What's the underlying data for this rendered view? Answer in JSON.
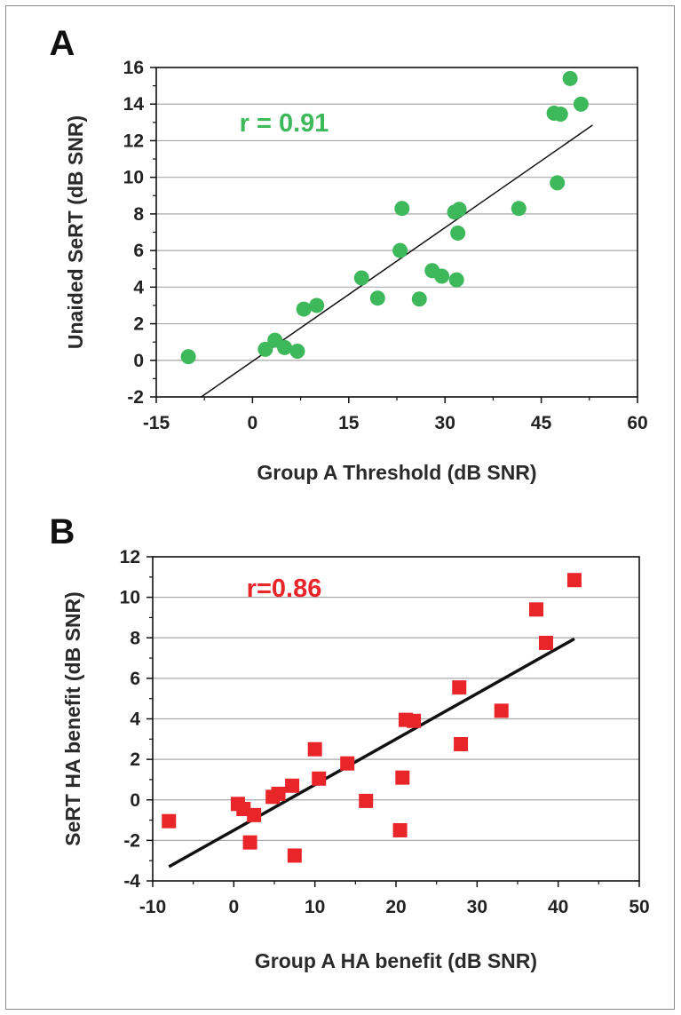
{
  "chart_data": [
    {
      "panel": "A",
      "type": "scatter",
      "xlabel": "Group A Threshold (dB SNR)",
      "ylabel": "Unaided SeRT (dB SNR)",
      "xlim": [
        -15,
        60
      ],
      "ylim": [
        -2,
        16
      ],
      "xticks": [
        "-15",
        "0",
        "15",
        "30",
        "45",
        "60"
      ],
      "yticks": [
        "-2",
        "0",
        "2",
        "4",
        "6",
        "8",
        "10",
        "12",
        "14",
        "16"
      ],
      "grid": "horizontal",
      "marker": "circle",
      "color": "#3db85a",
      "annotation": "r = 0.91",
      "points": [
        {
          "x": -10,
          "y": 0.2
        },
        {
          "x": 2,
          "y": 0.6
        },
        {
          "x": 3.5,
          "y": 1.1
        },
        {
          "x": 5,
          "y": 0.7
        },
        {
          "x": 7,
          "y": 0.5
        },
        {
          "x": 8,
          "y": 2.8
        },
        {
          "x": 10,
          "y": 3.0
        },
        {
          "x": 17,
          "y": 4.5
        },
        {
          "x": 19.5,
          "y": 3.4
        },
        {
          "x": 23,
          "y": 6.0
        },
        {
          "x": 23.3,
          "y": 8.3
        },
        {
          "x": 26,
          "y": 3.35
        },
        {
          "x": 28,
          "y": 4.9
        },
        {
          "x": 29.5,
          "y": 4.6
        },
        {
          "x": 31.5,
          "y": 8.1
        },
        {
          "x": 31.8,
          "y": 4.4
        },
        {
          "x": 32,
          "y": 6.95
        },
        {
          "x": 32.2,
          "y": 8.25
        },
        {
          "x": 41.5,
          "y": 8.3
        },
        {
          "x": 47,
          "y": 13.5
        },
        {
          "x": 47.5,
          "y": 9.7
        },
        {
          "x": 48,
          "y": 13.45
        },
        {
          "x": 49.5,
          "y": 15.4
        },
        {
          "x": 51.2,
          "y": 14.0
        }
      ],
      "fit_line": {
        "x": [
          -8,
          53
        ],
        "y": [
          -2,
          12.85
        ]
      }
    },
    {
      "panel": "B",
      "type": "scatter",
      "xlabel": "Group A HA benefit (dB SNR)",
      "ylabel": "SeRT HA benefit (dB SNR)",
      "xlim": [
        -10,
        50
      ],
      "ylim": [
        -4,
        12
      ],
      "xticks": [
        "-10",
        "0",
        "10",
        "20",
        "30",
        "40",
        "50"
      ],
      "yticks": [
        "-4",
        "-2",
        "0",
        "2",
        "4",
        "6",
        "8",
        "10",
        "12"
      ],
      "grid": "horizontal",
      "marker": "square",
      "color": "#e8262a",
      "annotation": "r=0.86",
      "points": [
        {
          "x": -8,
          "y": -1.05
        },
        {
          "x": 0.5,
          "y": -0.2
        },
        {
          "x": 1.2,
          "y": -0.45
        },
        {
          "x": 2,
          "y": -2.1
        },
        {
          "x": 2.5,
          "y": -0.75
        },
        {
          "x": 4.8,
          "y": 0.15
        },
        {
          "x": 5.5,
          "y": 0.3
        },
        {
          "x": 7.2,
          "y": 0.7
        },
        {
          "x": 7.5,
          "y": -2.75
        },
        {
          "x": 10,
          "y": 2.5
        },
        {
          "x": 10.5,
          "y": 1.05
        },
        {
          "x": 14,
          "y": 1.8
        },
        {
          "x": 16.3,
          "y": -0.05
        },
        {
          "x": 20.5,
          "y": -1.5
        },
        {
          "x": 20.8,
          "y": 1.1
        },
        {
          "x": 21.2,
          "y": 3.95
        },
        {
          "x": 22.2,
          "y": 3.9
        },
        {
          "x": 27.8,
          "y": 5.55
        },
        {
          "x": 28,
          "y": 2.75
        },
        {
          "x": 33,
          "y": 4.4
        },
        {
          "x": 37.3,
          "y": 9.4
        },
        {
          "x": 38.5,
          "y": 7.75
        },
        {
          "x": 42,
          "y": 10.85
        }
      ],
      "fit_line": {
        "x": [
          -8,
          42
        ],
        "y": [
          -3.3,
          7.95
        ]
      }
    }
  ]
}
